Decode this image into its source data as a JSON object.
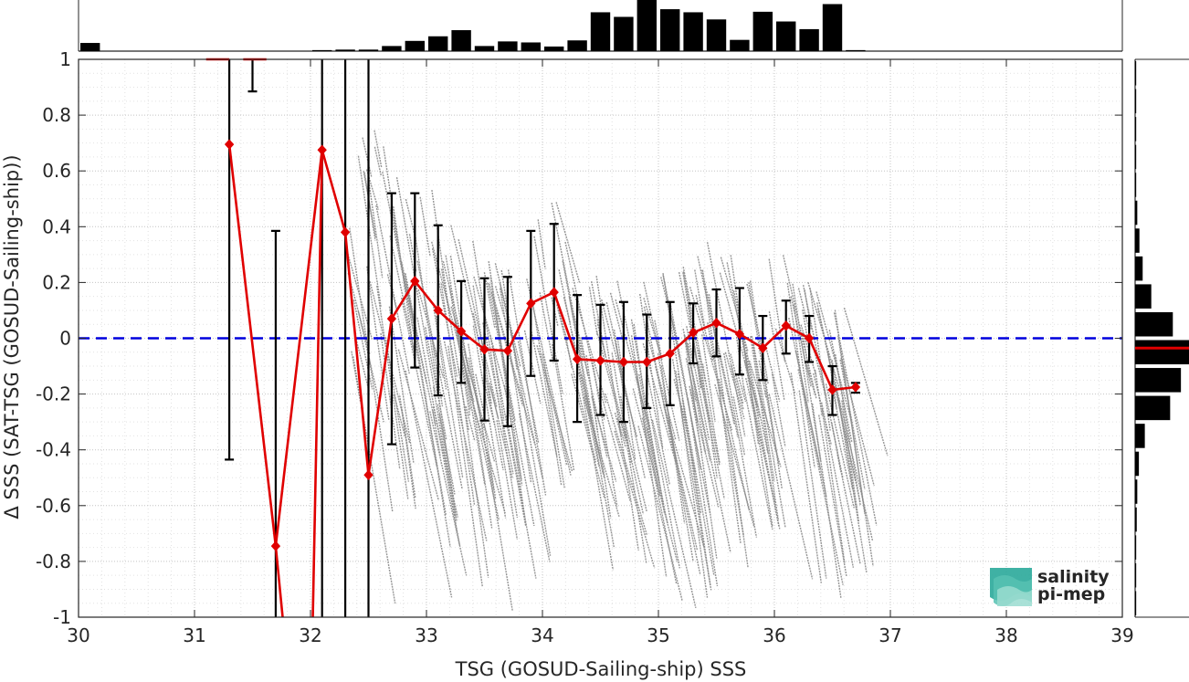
{
  "chart_data": {
    "type": "scatter",
    "title": "",
    "xlabel": "TSG (GOSUD-Sailing-ship) SSS",
    "ylabel": "Δ SSS (SAT-TSG (GOSUD-Sailing-ship))",
    "xlim": [
      30,
      39
    ],
    "ylim": [
      -1,
      1
    ],
    "xticks": [
      30,
      31,
      32,
      33,
      34,
      35,
      36,
      37,
      38,
      39
    ],
    "yticks": [
      -1,
      -0.8,
      -0.6,
      -0.4,
      -0.2,
      0,
      0.2,
      0.4,
      0.6,
      0.8,
      1
    ],
    "xtick_labels": [
      "30",
      "31",
      "32",
      "33",
      "34",
      "35",
      "36",
      "37",
      "38",
      "39"
    ],
    "ytick_labels": [
      "-1",
      "-0.8",
      "-0.6",
      "-0.4",
      "-0.2",
      "0",
      "0.2",
      "0.4",
      "0.6",
      "0.8",
      "1"
    ],
    "grid": true,
    "colors": {
      "scatter": "#8a8a8a",
      "mean_line": "#e00000",
      "zero_line": "#0000dd",
      "error_bar": "#000000",
      "histogram": "#000000",
      "median_marker": "#e00000"
    },
    "zero_line_y": 0,
    "binned_mean": {
      "x": [
        31.3,
        31.7,
        32.1,
        32.3,
        32.5,
        32.7,
        32.9,
        33.1,
        33.3,
        33.5,
        33.7,
        33.9,
        34.1,
        34.3,
        34.5,
        34.7,
        34.9,
        35.1,
        35.3,
        35.5,
        35.7,
        35.9,
        36.1,
        36.3,
        36.5,
        36.7
      ],
      "y": [
        0.695,
        -0.745,
        0.675,
        0.38,
        -0.49,
        0.07,
        0.205,
        0.1,
        0.025,
        -0.04,
        -0.045,
        0.125,
        0.165,
        -0.075,
        -0.08,
        -0.085,
        -0.085,
        -0.055,
        0.02,
        0.055,
        0.015,
        -0.035,
        0.045,
        0.0,
        -0.185,
        -0.175
      ]
    },
    "error_bars": {
      "x": [
        31.3,
        31.5,
        31.7,
        32.1,
        32.3,
        32.5,
        32.7,
        32.9,
        33.1,
        33.3,
        33.5,
        33.7,
        33.9,
        34.1,
        34.3,
        34.5,
        34.7,
        34.9,
        35.1,
        35.3,
        35.5,
        35.7,
        35.9,
        36.1,
        36.3,
        36.5,
        36.7
      ],
      "low": [
        -0.435,
        0.885,
        -1.0,
        -1.0,
        -1.0,
        -1.0,
        -0.38,
        -0.105,
        -0.205,
        -0.16,
        -0.295,
        -0.315,
        -0.135,
        -0.08,
        -0.3,
        -0.275,
        -0.3,
        -0.25,
        -0.24,
        -0.09,
        -0.065,
        -0.13,
        -0.15,
        -0.055,
        -0.085,
        -0.275,
        -0.195
      ],
      "high": [
        1.0,
        1.0,
        0.385,
        1.0,
        1.0,
        1.0,
        0.52,
        0.52,
        0.405,
        0.205,
        0.215,
        0.22,
        0.385,
        0.41,
        0.155,
        0.12,
        0.13,
        0.085,
        0.13,
        0.125,
        0.175,
        0.18,
        0.08,
        0.135,
        0.08,
        -0.1,
        -0.16
      ]
    },
    "outlier_segments": [
      {
        "x": [
          31.1,
          31.3
        ],
        "y": [
          1.0,
          1.0
        ]
      },
      {
        "x": [
          31.42,
          31.62
        ],
        "y": [
          1.0,
          1.0
        ]
      },
      {
        "x": [
          31.7,
          31.76
        ],
        "y": [
          -0.745,
          -1.0
        ]
      },
      {
        "x": [
          32.02,
          32.1
        ],
        "y": [
          -1.0,
          0.675
        ]
      }
    ],
    "top_histogram": {
      "bin_width": 0.2,
      "x": [
        30.1,
        30.3,
        30.5,
        30.7,
        30.9,
        31.1,
        31.3,
        31.5,
        31.7,
        31.9,
        32.1,
        32.3,
        32.5,
        32.7,
        32.9,
        33.1,
        33.3,
        33.5,
        33.7,
        33.9,
        34.1,
        34.3,
        34.5,
        34.7,
        34.9,
        35.1,
        35.3,
        35.5,
        35.7,
        35.9,
        36.1,
        36.3,
        36.5,
        36.7
      ],
      "counts": [
        0.16,
        0,
        0,
        0,
        0,
        0,
        0,
        0,
        0,
        0,
        0.02,
        0.03,
        0.03,
        0.1,
        0.2,
        0.29,
        0.41,
        0.1,
        0.19,
        0.17,
        0.09,
        0.21,
        0.76,
        0.67,
        1.0,
        0.82,
        0.76,
        0.62,
        0.22,
        0.77,
        0.58,
        0.43,
        0.92,
        0.02
      ]
    },
    "right_histogram": {
      "bin_width": 0.1,
      "y": [
        0.95,
        0.85,
        0.75,
        0.65,
        0.55,
        0.45,
        0.35,
        0.25,
        0.15,
        0.05,
        -0.05,
        -0.15,
        -0.25,
        -0.35,
        -0.45,
        -0.55,
        -0.65,
        -0.75,
        -0.85,
        -0.95
      ],
      "counts": [
        0.02,
        0.02,
        0.02,
        0.02,
        0.02,
        0.04,
        0.08,
        0.14,
        0.3,
        0.7,
        1.0,
        0.85,
        0.65,
        0.18,
        0.07,
        0.04,
        0.03,
        0.02,
        0.02,
        0.02
      ],
      "median_y": -0.035
    },
    "logo": {
      "line1": "salinity",
      "line2": "pi-mep",
      "color": "#2aa89a"
    }
  }
}
